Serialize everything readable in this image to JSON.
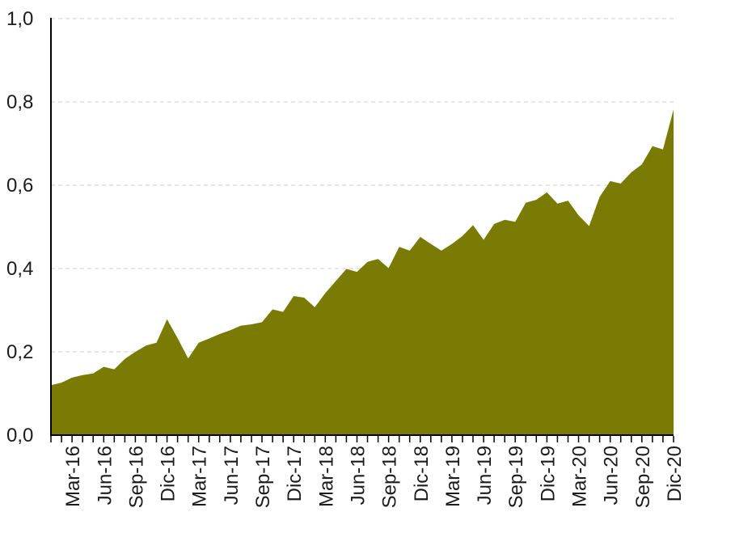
{
  "chart_data": {
    "type": "area",
    "title": "",
    "xlabel": "",
    "ylabel": "",
    "x_unit": "month",
    "legend": "none",
    "background": "#ffffff",
    "axis_color": "#000000",
    "text_color": "#1c1c1c",
    "grid": {
      "horizontal": true,
      "vertical": false,
      "style": "dashed",
      "color": "#cccccc"
    },
    "ylim": [
      0,
      1
    ],
    "y_ticks": {
      "values": [
        0,
        0.2,
        0.4,
        0.6,
        0.8,
        1
      ],
      "labels": [
        "0,0",
        "0,2",
        "0,4",
        "0,6",
        "0,8",
        "1,0"
      ],
      "decimal_separator": ","
    },
    "x_ticks": {
      "tick_every_months": 1,
      "label_every_months": 3,
      "first_labeled_index": 2,
      "labels": [
        "Mar-16",
        "Jun-16",
        "Sep-16",
        "Dic-16",
        "Mar-17",
        "Jun-17",
        "Sep-17",
        "Dic-17",
        "Mar-18",
        "Jun-18",
        "Sep-18",
        "Dic-18",
        "Mar-19",
        "Jun-19",
        "Sep-19",
        "Dic-19",
        "Mar-20",
        "Jun-20",
        "Sep-20",
        "Dic-20"
      ]
    },
    "categories": [
      "Ene-16",
      "Feb-16",
      "Mar-16",
      "Abr-16",
      "May-16",
      "Jun-16",
      "Jul-16",
      "Ago-16",
      "Sep-16",
      "Oct-16",
      "Nov-16",
      "Dic-16",
      "Ene-17",
      "Feb-17",
      "Mar-17",
      "Abr-17",
      "May-17",
      "Jun-17",
      "Jul-17",
      "Ago-17",
      "Sep-17",
      "Oct-17",
      "Nov-17",
      "Dic-17",
      "Ene-18",
      "Feb-18",
      "Mar-18",
      "Abr-18",
      "May-18",
      "Jun-18",
      "Jul-18",
      "Ago-18",
      "Sep-18",
      "Oct-18",
      "Nov-18",
      "Dic-18",
      "Ene-19",
      "Feb-19",
      "Mar-19",
      "Abr-19",
      "May-19",
      "Jun-19",
      "Jul-19",
      "Ago-19",
      "Sep-19",
      "Oct-19",
      "Nov-19",
      "Dic-19",
      "Ene-20",
      "Feb-20",
      "Mar-20",
      "Abr-20",
      "May-20",
      "Jun-20",
      "Jul-20",
      "Ago-20",
      "Sep-20",
      "Oct-20",
      "Nov-20",
      "Dic-20"
    ],
    "series": [
      {
        "name": "serie",
        "color": "#7A7B05",
        "values": [
          0.12,
          0.126,
          0.138,
          0.144,
          0.148,
          0.164,
          0.158,
          0.183,
          0.2,
          0.215,
          0.222,
          0.278,
          0.233,
          0.184,
          0.222,
          0.232,
          0.243,
          0.252,
          0.263,
          0.266,
          0.271,
          0.302,
          0.296,
          0.334,
          0.33,
          0.307,
          0.341,
          0.37,
          0.399,
          0.392,
          0.416,
          0.423,
          0.401,
          0.452,
          0.443,
          0.476,
          0.459,
          0.443,
          0.459,
          0.478,
          0.504,
          0.469,
          0.507,
          0.517,
          0.512,
          0.558,
          0.565,
          0.583,
          0.556,
          0.563,
          0.528,
          0.502,
          0.572,
          0.61,
          0.604,
          0.631,
          0.65,
          0.694,
          0.686,
          0.782
        ]
      }
    ]
  }
}
